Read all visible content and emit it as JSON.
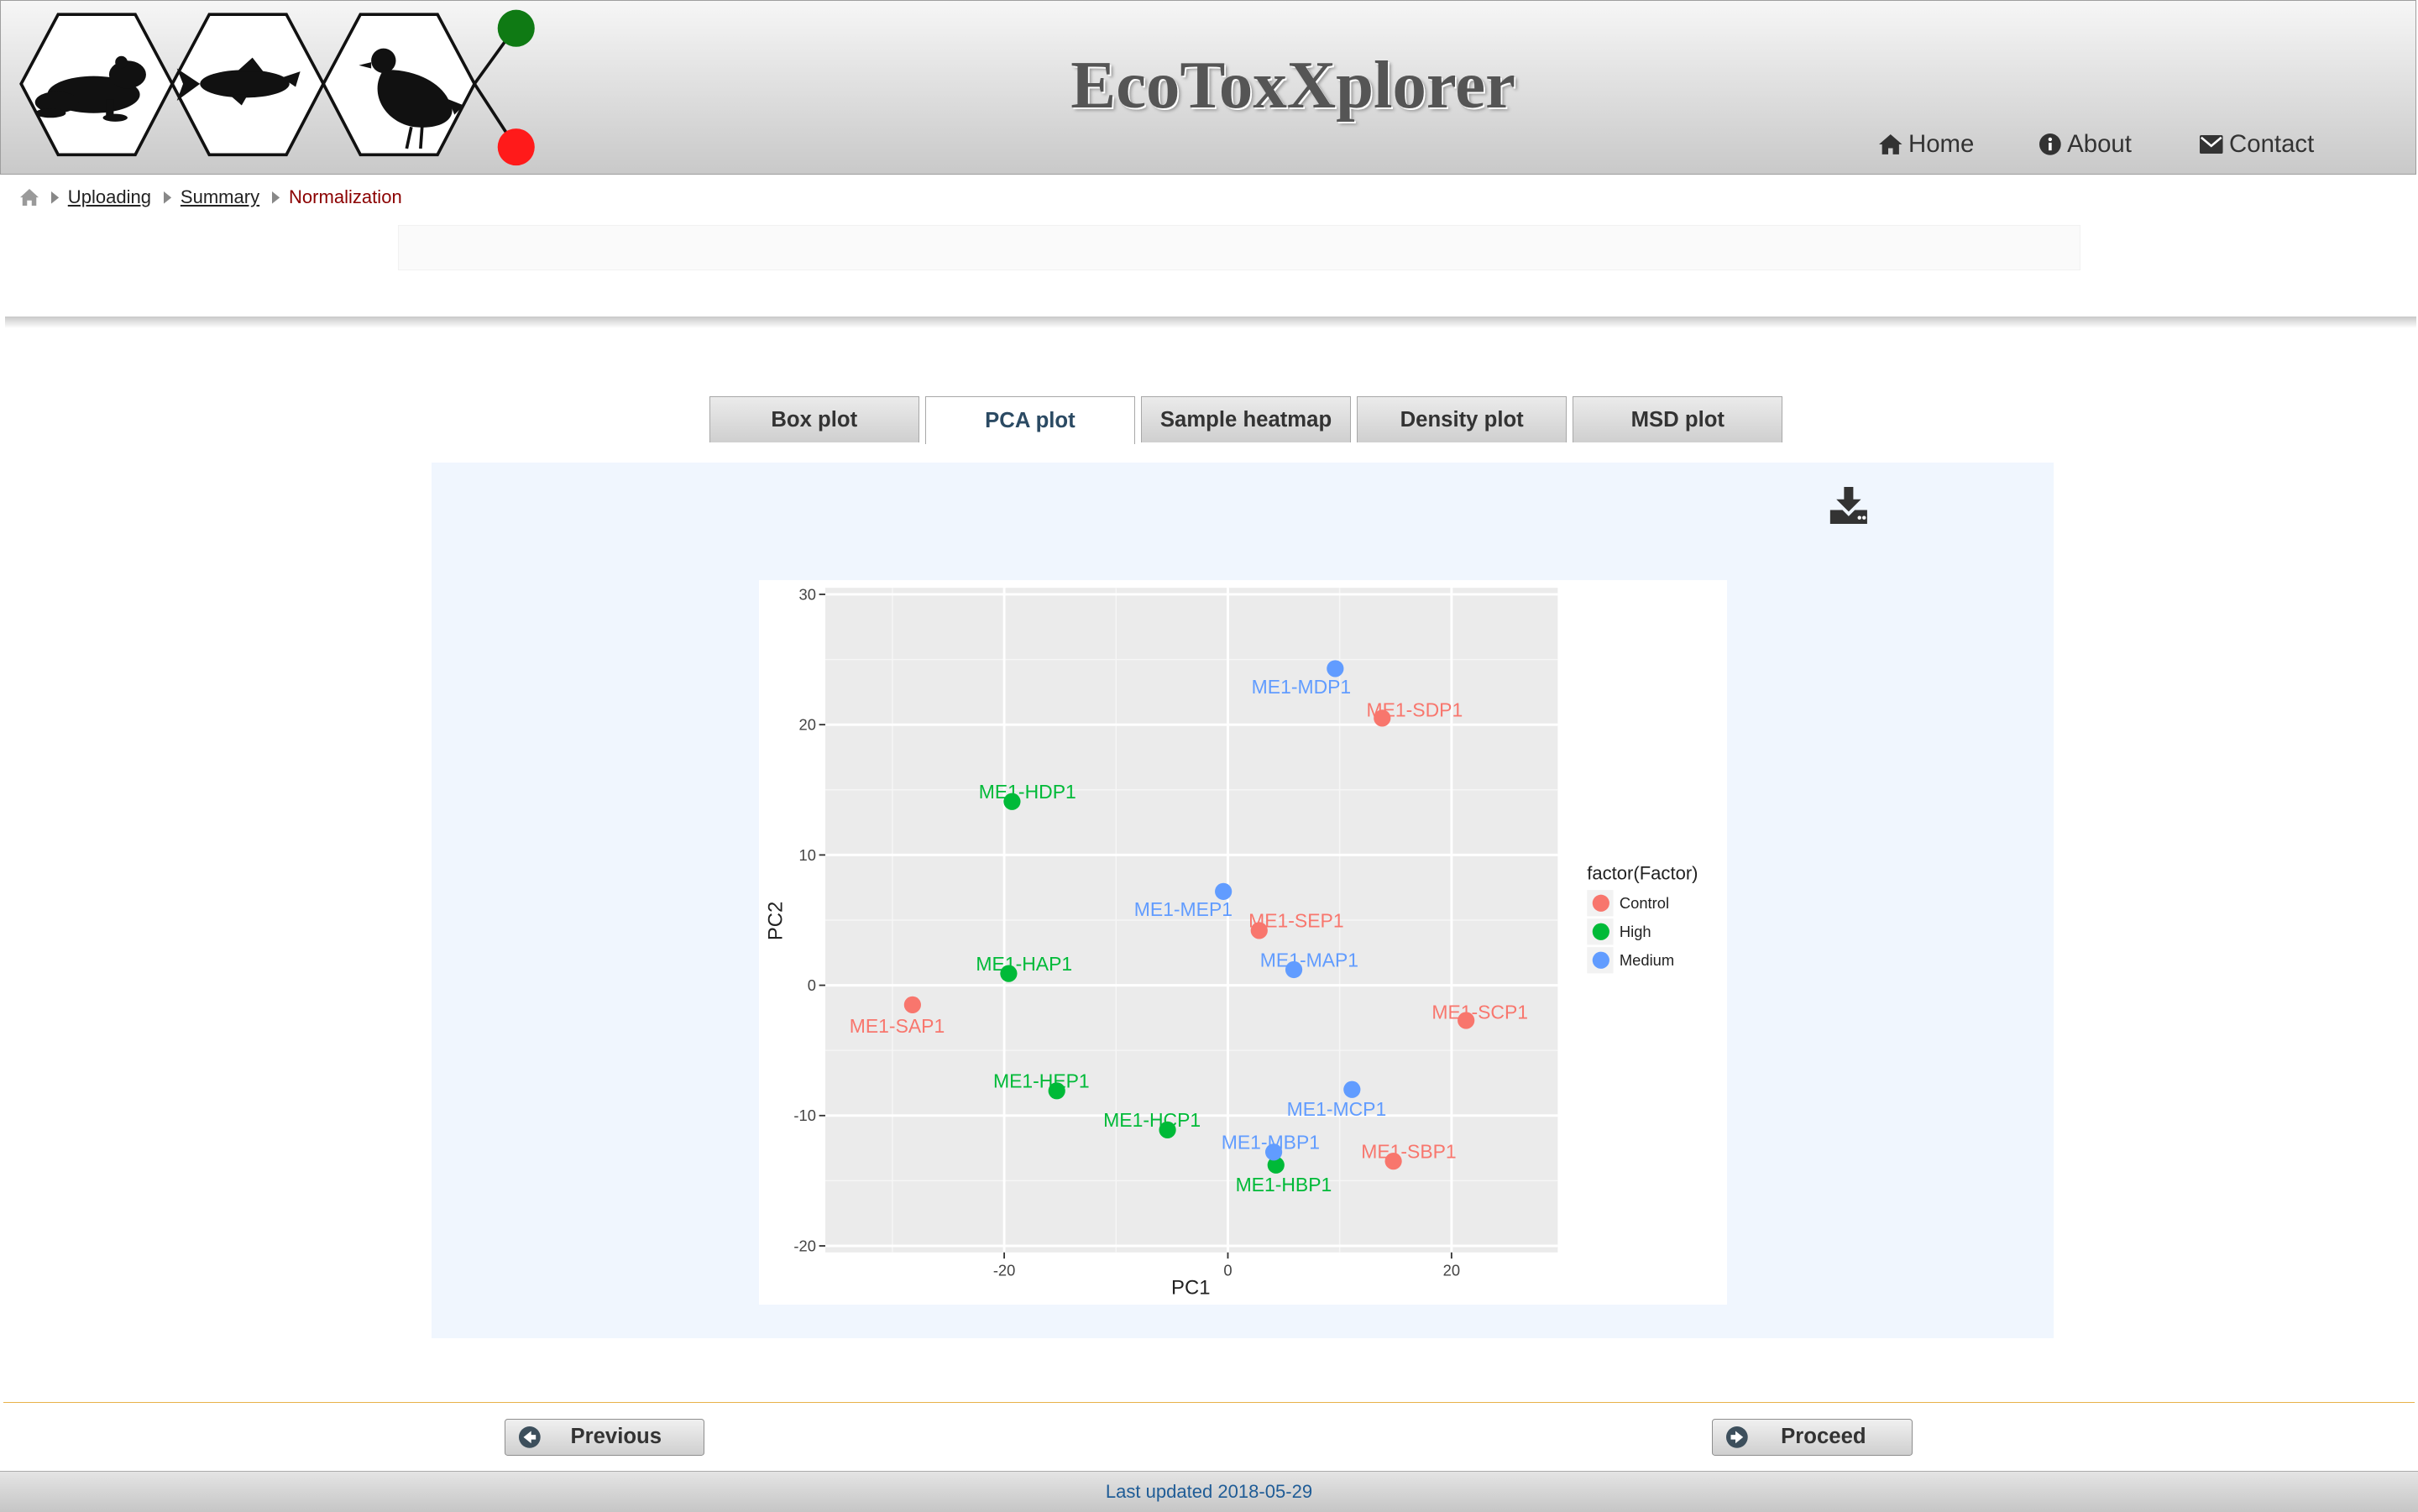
{
  "header": {
    "title": "EcoToxXplorer",
    "nav": [
      {
        "label": "Home",
        "icon": "home-icon"
      },
      {
        "label": "About",
        "icon": "info-circle-icon"
      },
      {
        "label": "Contact",
        "icon": "envelope-icon"
      }
    ],
    "logo": {
      "icons": [
        "frog-icon",
        "fish-icon",
        "quail-icon"
      ],
      "accent_colors": {
        "green": "#0f7a14",
        "red": "#ff1a1a"
      }
    }
  },
  "breadcrumb": {
    "home_icon": "home-icon",
    "items": [
      "Uploading",
      "Summary",
      "Normalization"
    ]
  },
  "tabs": [
    {
      "label": "Box plot",
      "active": false
    },
    {
      "label": "PCA plot",
      "active": true
    },
    {
      "label": "Sample heatmap",
      "active": false
    },
    {
      "label": "Density plot",
      "active": false
    },
    {
      "label": "MSD plot",
      "active": false
    }
  ],
  "panel": {
    "download_icon": "download-icon"
  },
  "chart_data": {
    "type": "scatter",
    "xlabel": "PC1",
    "ylabel": "PC2",
    "xlim": [
      -36,
      29.5
    ],
    "ylim": [
      -20.5,
      30.5
    ],
    "xticks": [
      -20,
      0,
      20
    ],
    "yticks": [
      -20,
      -10,
      0,
      10,
      20,
      30
    ],
    "grid": true,
    "legend": {
      "title": "factor(Factor)",
      "position": "right"
    },
    "series": [
      {
        "name": "Control",
        "color": "#f8766d",
        "points": [
          {
            "label": "ME1-SDP1",
            "x": 13.8,
            "y": 20.5
          },
          {
            "label": "ME1-SEP1",
            "x": 2.8,
            "y": 4.2
          },
          {
            "label": "ME1-SAP1",
            "x": -28.2,
            "y": -1.5
          },
          {
            "label": "ME1-SCP1",
            "x": 21.3,
            "y": -2.7
          },
          {
            "label": "ME1-SBP1",
            "x": 14.8,
            "y": -13.5
          }
        ]
      },
      {
        "name": "High",
        "color": "#00ba38",
        "points": [
          {
            "label": "ME1-HDP1",
            "x": -19.3,
            "y": 14.1
          },
          {
            "label": "ME1-HAP1",
            "x": -19.6,
            "y": 0.9
          },
          {
            "label": "ME1-HEP1",
            "x": -15.3,
            "y": -8.1
          },
          {
            "label": "ME1-HCP1",
            "x": -5.4,
            "y": -11.1
          },
          {
            "label": "ME1-HBP1",
            "x": 4.3,
            "y": -13.8
          }
        ]
      },
      {
        "name": "Medium",
        "color": "#619cff",
        "points": [
          {
            "label": "ME1-MDP1",
            "x": 9.6,
            "y": 24.3
          },
          {
            "label": "ME1-MEP1",
            "x": -0.4,
            "y": 7.2
          },
          {
            "label": "ME1-MAP1",
            "x": 5.9,
            "y": 1.2
          },
          {
            "label": "ME1-MCP1",
            "x": 11.1,
            "y": -8.0
          },
          {
            "label": "ME1-MBP1",
            "x": 4.1,
            "y": -12.8
          }
        ]
      }
    ]
  },
  "buttons": {
    "previous": {
      "label": "Previous",
      "icon": "arrow-left-circle-icon"
    },
    "proceed": {
      "label": "Proceed",
      "icon": "arrow-right-circle-icon"
    }
  },
  "footer": {
    "last_updated": "Last updated 2018-05-29"
  }
}
